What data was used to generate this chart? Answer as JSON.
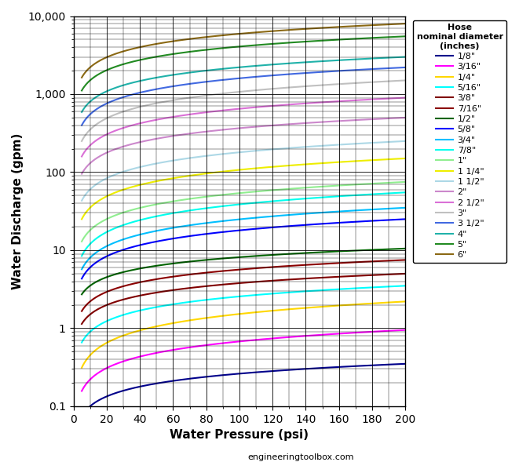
{
  "title": "",
  "xlabel": "Water Pressure (psi)",
  "ylabel": "Water Discharge (gpm)",
  "legend_title": "Hose\nnominal diameter\n(inches)",
  "footnote": "engineeringtoolbox.com",
  "xlim": [
    0,
    200
  ],
  "ylim_log": [
    0.1,
    10000
  ],
  "series": [
    {
      "label": "1/8\"",
      "color": "#00008B",
      "lw": 1.5,
      "Q_at_10": 0.1,
      "Q_at_200": 0.35,
      "sat_p": 8000
    },
    {
      "label": "3/16\"",
      "color": "#FF00FF",
      "lw": 1.5,
      "Q_at_10": 0.22,
      "Q_at_200": 0.95,
      "sat_p": 8000
    },
    {
      "label": "1/4\"",
      "color": "#FFD700",
      "lw": 1.5,
      "Q_at_10": 0.45,
      "Q_at_200": 2.2,
      "sat_p": 8000
    },
    {
      "label": "5/16\"",
      "color": "#00FFFF",
      "lw": 1.5,
      "Q_at_10": 0.9,
      "Q_at_200": 3.5,
      "sat_p": 1000
    },
    {
      "label": "3/8\"",
      "color": "#800000",
      "lw": 1.5,
      "Q_at_10": 1.5,
      "Q_at_200": 5.0,
      "sat_p": 600
    },
    {
      "label": "7/16\"",
      "color": "#8B0000",
      "lw": 1.5,
      "Q_at_10": 2.2,
      "Q_at_200": 7.5,
      "sat_p": 400
    },
    {
      "label": "1/2\"",
      "color": "#006400",
      "lw": 1.5,
      "Q_at_10": 3.5,
      "Q_at_200": 10.5,
      "sat_p": 250
    },
    {
      "label": "5/8\"",
      "color": "#0000FF",
      "lw": 1.5,
      "Q_at_10": 6.0,
      "Q_at_200": 25.0,
      "sat_p": 250
    },
    {
      "label": "3/4\"",
      "color": "#00BFFF",
      "lw": 1.5,
      "Q_at_10": 8.0,
      "Q_at_200": 35.0,
      "sat_p": 200
    },
    {
      "label": "7/8\"",
      "color": "#00FFEE",
      "lw": 1.5,
      "Q_at_10": 12.0,
      "Q_at_200": 55.0,
      "sat_p": 200
    },
    {
      "label": "1\"",
      "color": "#90EE90",
      "lw": 1.5,
      "Q_at_10": 18.0,
      "Q_at_200": 75.0,
      "sat_p": 150
    },
    {
      "label": "1 1/4\"",
      "color": "#EEEE00",
      "lw": 1.5,
      "Q_at_10": 35.0,
      "Q_at_200": 150.0,
      "sat_p": 120
    },
    {
      "label": "1 1/2\"",
      "color": "#ADD8E6",
      "lw": 1.5,
      "Q_at_10": 60.0,
      "Q_at_200": 250.0,
      "sat_p": 100
    },
    {
      "label": "2\"",
      "color": "#CC88CC",
      "lw": 1.5,
      "Q_at_10": 130.0,
      "Q_at_200": 500.0,
      "sat_p": 80
    },
    {
      "label": "2 1/2\"",
      "color": "#DA70D6",
      "lw": 1.5,
      "Q_at_10": 220.0,
      "Q_at_200": 900.0,
      "sat_p": 70
    },
    {
      "label": "3\"",
      "color": "#C0C0C0",
      "lw": 1.5,
      "Q_at_10": 350.0,
      "Q_at_200": 1500.0,
      "sat_p": 60
    },
    {
      "label": "3 1/2\"",
      "color": "#4169E1",
      "lw": 1.5,
      "Q_at_10": 550.0,
      "Q_at_200": 2200.0,
      "sat_p": 50
    },
    {
      "label": "4\"",
      "color": "#20B2AA",
      "lw": 1.5,
      "Q_at_10": 800.0,
      "Q_at_200": 3000.0,
      "sat_p": 40
    },
    {
      "label": "5\"",
      "color": "#228B22",
      "lw": 1.5,
      "Q_at_10": 1500.0,
      "Q_at_200": 5500.0,
      "sat_p": 30
    },
    {
      "label": "6\"",
      "color": "#8B6914",
      "lw": 1.5,
      "Q_at_10": 2200.0,
      "Q_at_200": 8000.0,
      "sat_p": 25
    }
  ]
}
